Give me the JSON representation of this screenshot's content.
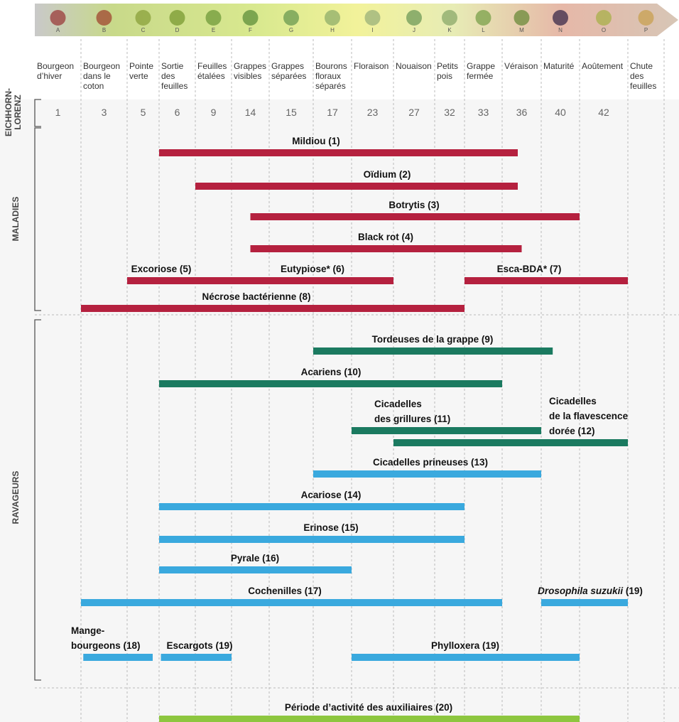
{
  "stages": [
    {
      "letter": "A",
      "name": [
        "Bourgeon",
        "d’hiver"
      ],
      "el": 1
    },
    {
      "letter": "B",
      "name": [
        "Bourgeon",
        "dans le",
        "coton"
      ],
      "el": 3
    },
    {
      "letter": "C",
      "name": [
        "Pointe",
        "verte"
      ],
      "el": 5
    },
    {
      "letter": "D",
      "name": [
        "Sortie",
        "des",
        "feuilles"
      ],
      "el": 6
    },
    {
      "letter": "E",
      "name": [
        "Feuilles",
        "étalées"
      ],
      "el": 9
    },
    {
      "letter": "F",
      "name": [
        "Grappes",
        "visibles"
      ],
      "el": 14
    },
    {
      "letter": "G",
      "name": [
        "Grappes",
        "séparées"
      ],
      "el": 15
    },
    {
      "letter": "H",
      "name": [
        "Bourons",
        "floraux",
        "séparés"
      ],
      "el": 17
    },
    {
      "letter": "I",
      "name": [
        "Floraison"
      ],
      "el": 23
    },
    {
      "letter": "J",
      "name": [
        "Nouaison"
      ],
      "el": 27
    },
    {
      "letter": "K",
      "name": [
        "Petits",
        "pois"
      ],
      "el": 32
    },
    {
      "letter": "L",
      "name": [
        "Grappe",
        "fermée"
      ],
      "el": 33
    },
    {
      "letter": "M",
      "name": [
        "Véraison"
      ],
      "el": 36
    },
    {
      "letter": "N",
      "name": [
        "Maturité"
      ],
      "el": 40
    },
    {
      "letter": "O",
      "name": [
        "Aoûtement"
      ],
      "el": 42
    },
    {
      "letter": "P",
      "name": [
        "Chute",
        "des",
        "feuilles"
      ]
    }
  ],
  "el_label": [
    "EICHHORN-",
    "LORENZ"
  ],
  "groups": [
    {
      "name": "MALADIES",
      "bars": [
        {
          "lines": [
            "Mildiou (1)"
          ],
          "start": 3,
          "end": 12.4,
          "color": "#b5213f"
        },
        {
          "lines": [
            "Oïdium (2)"
          ],
          "start": 4,
          "end": 12.4,
          "color": "#b5213f"
        },
        {
          "lines": [
            "Botrytis (3)"
          ],
          "start": 5.5,
          "end": 14,
          "color": "#b5213f"
        },
        {
          "lines": [
            "Black rot (4)"
          ],
          "start": 5.5,
          "end": 12.5,
          "color": "#b5213f"
        },
        {
          "lines": [
            "Excoriose (5)"
          ],
          "start": 2,
          "end": 5,
          "color": "#b5213f"
        },
        {
          "lines": [
            "Eutypiose* (6)"
          ],
          "start": 5,
          "end": 9,
          "color": "#b5213f"
        },
        {
          "lines": [
            "Esca-BDA* (7)"
          ],
          "start": 11,
          "end": 15,
          "color": "#b5213f"
        },
        {
          "lines": [
            "Nécrose bactérienne (8)"
          ],
          "start": 1,
          "end": 11,
          "color": "#b5213f"
        }
      ]
    },
    {
      "name": "RAVAGEURS",
      "bars": [
        {
          "lines": [
            "Tordeuses de la grappe (9)"
          ],
          "start": 7,
          "end": 13.3,
          "color": "#1b7a60"
        },
        {
          "lines": [
            "Acariens (10)"
          ],
          "start": 3,
          "end": 12,
          "color": "#1b7a60"
        },
        {
          "lines": [
            "Cicadelles",
            "des grillures (11)"
          ],
          "start": 8,
          "end": 13,
          "color": "#1b7a60"
        },
        {
          "lines": [
            "Cicadelles",
            "de la flavescence",
            "dorée (12)"
          ],
          "start": 9,
          "end": 15,
          "color": "#1b7a60"
        },
        {
          "lines": [
            "Cicadelles prineuses (13)"
          ],
          "start": 7,
          "end": 13,
          "color": "#3aa9de"
        },
        {
          "lines": [
            "Acariose (14)"
          ],
          "start": 3,
          "end": 11,
          "color": "#3aa9de"
        },
        {
          "lines": [
            "Erinose (15)"
          ],
          "start": 3,
          "end": 11,
          "color": "#3aa9de"
        },
        {
          "lines": [
            "Pyrale (16)"
          ],
          "start": 3,
          "end": 8,
          "color": "#3aa9de"
        },
        {
          "lines": [
            "Cochenilles (17)"
          ],
          "start": 1,
          "end": 12,
          "color": "#3aa9de"
        },
        {
          "lines": [
            [
              {
                "text": "Drosophila suzukii",
                "italic": true
              },
              {
                "text": " (19)"
              }
            ]
          ],
          "start": 13,
          "end": 15,
          "color": "#3aa9de"
        },
        {
          "lines": [
            "Mange-",
            "bourgeons (18)"
          ],
          "start": 1.05,
          "end": 2.8,
          "color": "#3aa9de"
        },
        {
          "lines": [
            "Escargots (19)"
          ],
          "start": 3.05,
          "end": 5,
          "color": "#3aa9de"
        },
        {
          "lines": [
            "Phylloxera (19)"
          ],
          "start": 8,
          "end": 14,
          "color": "#3aa9de"
        }
      ]
    },
    {
      "bars": [
        {
          "lines": [
            "Période d’activité des auxiliaires (20)"
          ],
          "start": 3,
          "end": 14,
          "color": "#8dc63f"
        }
      ]
    }
  ]
}
